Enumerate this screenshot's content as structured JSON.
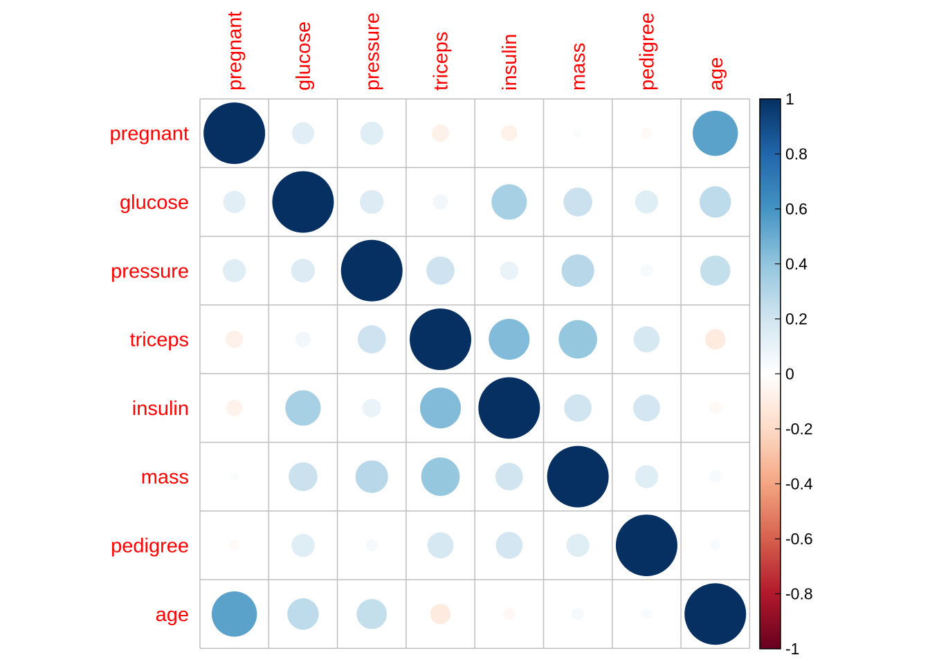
{
  "chart_data": {
    "type": "heatmap",
    "method": "circle",
    "variables": [
      "pregnant",
      "glucose",
      "pressure",
      "triceps",
      "insulin",
      "mass",
      "pedigree",
      "age"
    ],
    "matrix": [
      [
        1.0,
        0.13,
        0.14,
        -0.08,
        -0.07,
        0.02,
        -0.03,
        0.54
      ],
      [
        0.13,
        1.0,
        0.15,
        0.06,
        0.33,
        0.22,
        0.14,
        0.26
      ],
      [
        0.14,
        0.15,
        1.0,
        0.21,
        0.09,
        0.28,
        0.04,
        0.24
      ],
      [
        -0.08,
        0.06,
        0.21,
        1.0,
        0.44,
        0.39,
        0.18,
        -0.11
      ],
      [
        -0.07,
        0.33,
        0.09,
        0.44,
        1.0,
        0.2,
        0.19,
        -0.04
      ],
      [
        0.02,
        0.22,
        0.28,
        0.39,
        0.2,
        1.0,
        0.14,
        0.04
      ],
      [
        -0.03,
        0.14,
        0.04,
        0.18,
        0.19,
        0.14,
        1.0,
        0.03
      ],
      [
        0.54,
        0.26,
        0.24,
        -0.11,
        -0.04,
        0.04,
        0.03,
        1.0
      ]
    ],
    "colorbar": {
      "range": [
        -1,
        1
      ],
      "tick_labels": [
        "1",
        "0.8",
        "0.6",
        "0.4",
        "0.2",
        "0",
        "-0.2",
        "-0.4",
        "-0.6",
        "-0.8",
        "-1"
      ],
      "palette": [
        "#67001F",
        "#B2182B",
        "#D6604D",
        "#F4A582",
        "#FDDBC7",
        "#FFFFFF",
        "#D1E5F0",
        "#92C5DE",
        "#4393C3",
        "#2166AC",
        "#053061"
      ]
    },
    "label_color": "#FF0000",
    "grid": true,
    "grid_color": "#BEBEBE"
  }
}
